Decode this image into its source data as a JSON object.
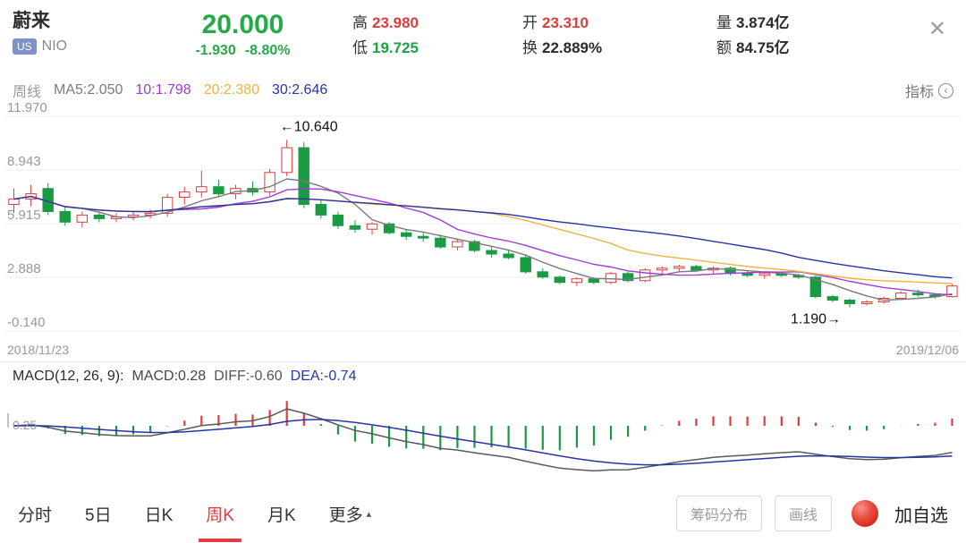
{
  "header": {
    "name": "蔚来",
    "market_badge": "US",
    "ticker": "NIO",
    "price": "20.000",
    "change": "-1.930",
    "change_pct": "-8.80%",
    "high_label": "高",
    "high": "23.980",
    "low_label": "低",
    "low": "19.725",
    "open_label": "开",
    "open": "23.310",
    "turnover_label": "换",
    "turnover": "22.889%",
    "volume_label": "量",
    "volume": "3.874亿",
    "amount_label": "额",
    "amount": "84.75亿",
    "close_icon": "✕"
  },
  "ma_bar": {
    "period_label": "周线",
    "ma5": "MA5:2.050",
    "ma10": "10:1.798",
    "ma20": "20:2.380",
    "ma30": "30:2.646",
    "indicator_label": "指标",
    "indicator_icon": "‹"
  },
  "main_chart": {
    "peak_annotation": "←10.640",
    "low_annotation": "1.190→"
  },
  "macd": {
    "title": "MACD(12, 26, 9):",
    "macd_value": "MACD:0.28",
    "diff_value": "DIFF:-0.60",
    "dea_value": "DEA:-0.74",
    "axis_label": "0.25"
  },
  "footer": {
    "tabs": [
      "分时",
      "5日",
      "日K",
      "周K",
      "月K"
    ],
    "active_tab": "周K",
    "more_label": "更多",
    "more_icon": "▴",
    "chip_buttons": [
      "筹码分布",
      "画线"
    ],
    "add_watchlist": "加自选"
  },
  "colors": {
    "up": "#e23b3c",
    "down": "#1a9a43",
    "price_green": "#23ab47",
    "ma5": "#7a7a7a",
    "ma10": "#a13bd5",
    "ma20": "#edb33e",
    "ma30": "#2733a6",
    "diff": "#5a5a5a",
    "dea": "#2733a6",
    "grid": "#ececec",
    "axis_text": "#999999"
  },
  "chart_data": {
    "type": "candlestick",
    "symbol": "NIO",
    "period": "weekly",
    "x_range": [
      "2018/11/23",
      "2019/12/06"
    ],
    "y_gridlines": [
      11.97,
      8.943,
      5.915,
      2.888,
      -0.14
    ],
    "y_gridline_labels": [
      "11.970",
      "8.943",
      "5.915",
      "2.888",
      "-0.140"
    ],
    "y_max": 11.97,
    "y_min": -0.14,
    "high_annotation_value": 10.64,
    "low_annotation_value": 1.19,
    "ma_legend": {
      "MA5": 2.05,
      "MA10": 1.798,
      "MA20": 2.38,
      "MA30": 2.646
    },
    "indicator": "MACD(12, 26, 9)",
    "macd_latest": {
      "macd": 0.28,
      "diff": -0.6,
      "dea": -0.74
    },
    "ohlc": [
      [
        7.0,
        7.9,
        6.5,
        7.3
      ],
      [
        7.3,
        8.1,
        6.9,
        7.6
      ],
      [
        7.9,
        8.2,
        6.4,
        6.6
      ],
      [
        6.6,
        6.9,
        5.8,
        6.0
      ],
      [
        6.0,
        6.6,
        5.7,
        6.4
      ],
      [
        6.4,
        6.6,
        6.0,
        6.2
      ],
      [
        6.2,
        6.5,
        6.0,
        6.3
      ],
      [
        6.3,
        6.6,
        6.1,
        6.4
      ],
      [
        6.4,
        6.7,
        6.2,
        6.5
      ],
      [
        6.5,
        7.6,
        6.3,
        7.4
      ],
      [
        7.4,
        8.0,
        7.0,
        7.7
      ],
      [
        7.7,
        8.9,
        7.4,
        8.0
      ],
      [
        8.0,
        8.4,
        7.4,
        7.6
      ],
      [
        7.6,
        8.1,
        7.3,
        7.9
      ],
      [
        7.9,
        8.3,
        7.5,
        7.7
      ],
      [
        7.7,
        9.0,
        7.5,
        8.8
      ],
      [
        8.8,
        10.64,
        8.6,
        10.2
      ],
      [
        10.2,
        10.5,
        6.8,
        7.0
      ],
      [
        7.0,
        7.3,
        6.2,
        6.4
      ],
      [
        6.4,
        6.6,
        5.6,
        5.8
      ],
      [
        5.8,
        6.1,
        5.4,
        5.6
      ],
      [
        5.6,
        6.0,
        5.3,
        5.9
      ],
      [
        5.9,
        6.0,
        5.3,
        5.4
      ],
      [
        5.4,
        5.6,
        5.0,
        5.2
      ],
      [
        5.2,
        5.4,
        4.9,
        5.1
      ],
      [
        5.1,
        5.3,
        4.5,
        4.6
      ],
      [
        4.6,
        5.0,
        4.4,
        4.9
      ],
      [
        4.9,
        5.0,
        4.3,
        4.4
      ],
      [
        4.4,
        4.6,
        4.0,
        4.2
      ],
      [
        4.2,
        4.4,
        3.9,
        4.0
      ],
      [
        4.0,
        4.2,
        3.1,
        3.2
      ],
      [
        3.2,
        3.4,
        2.8,
        2.9
      ],
      [
        2.9,
        3.0,
        2.5,
        2.6
      ],
      [
        2.6,
        2.9,
        2.4,
        2.8
      ],
      [
        2.8,
        2.9,
        2.5,
        2.6
      ],
      [
        2.6,
        3.2,
        2.5,
        3.1
      ],
      [
        3.1,
        3.2,
        2.6,
        2.7
      ],
      [
        2.7,
        3.4,
        2.6,
        3.3
      ],
      [
        3.3,
        3.5,
        3.1,
        3.4
      ],
      [
        3.4,
        3.6,
        3.2,
        3.5
      ],
      [
        3.5,
        3.6,
        3.2,
        3.3
      ],
      [
        3.3,
        3.5,
        3.1,
        3.4
      ],
      [
        3.4,
        3.5,
        3.0,
        3.1
      ],
      [
        3.1,
        3.3,
        2.9,
        3.0
      ],
      [
        3.0,
        3.2,
        2.8,
        3.1
      ],
      [
        3.1,
        3.2,
        2.9,
        3.0
      ],
      [
        3.0,
        3.1,
        2.8,
        2.9
      ],
      [
        2.9,
        3.0,
        1.7,
        1.8
      ],
      [
        1.8,
        1.9,
        1.5,
        1.6
      ],
      [
        1.6,
        1.7,
        1.19,
        1.4
      ],
      [
        1.4,
        1.6,
        1.3,
        1.5
      ],
      [
        1.5,
        1.8,
        1.4,
        1.7
      ],
      [
        1.7,
        2.1,
        1.6,
        2.0
      ],
      [
        2.0,
        2.2,
        1.8,
        1.9
      ],
      [
        1.9,
        2.0,
        1.7,
        1.8
      ],
      [
        1.8,
        2.5,
        1.75,
        2.4
      ]
    ]
  }
}
